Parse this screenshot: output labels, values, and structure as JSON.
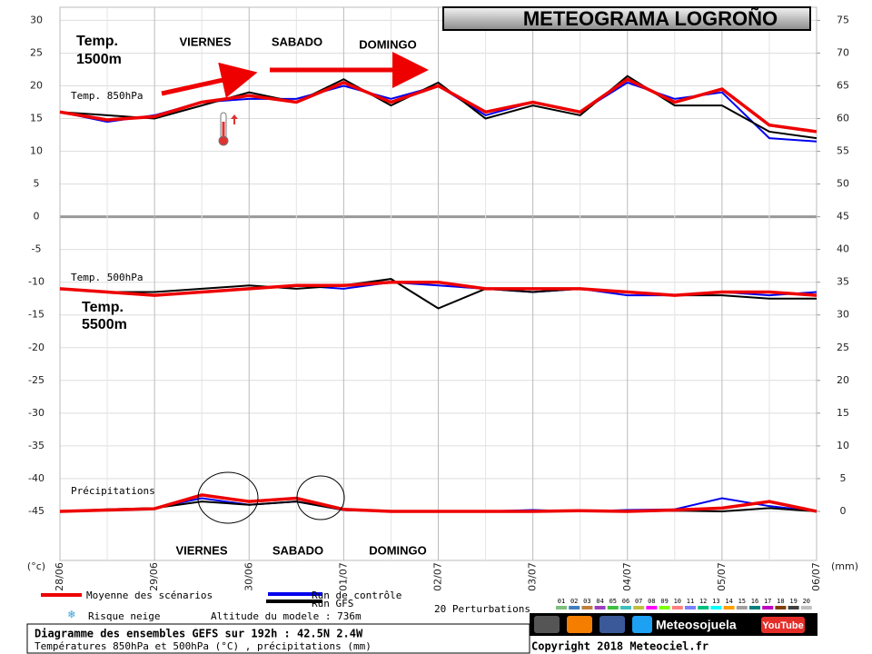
{
  "chart_data": {
    "type": "line",
    "title": "METEOGRAMA LOGROÑO",
    "annotations": {
      "temp_1500": "Temp.",
      "temp_1500_b": "1500m",
      "temp_5500": "Temp.",
      "temp_5500_b": "5500m",
      "days_top": [
        "VIERNES",
        "SABADO",
        "DOMINGO"
      ],
      "days_bottom": [
        "VIERNES",
        "SABADO",
        "DOMINGO"
      ],
      "t850": "Temp. 850hPa",
      "t500": "Temp. 500hPa",
      "precip": "Précipitations"
    },
    "ylabel": "(°c)",
    "y2label": "(mm)",
    "x": [
      0,
      12,
      24,
      36,
      48,
      60,
      72,
      84,
      96,
      108,
      120,
      132,
      144,
      156,
      168,
      180,
      192
    ],
    "xlim": [
      0,
      192
    ],
    "xticks": [
      {
        "value": 0,
        "label": "28/06"
      },
      {
        "value": 24,
        "label": "29/06"
      },
      {
        "value": 48,
        "label": "30/06"
      },
      {
        "value": 72,
        "label": "01/07"
      },
      {
        "value": 96,
        "label": "02/07"
      },
      {
        "value": 120,
        "label": "03/07"
      },
      {
        "value": 144,
        "label": "04/07"
      },
      {
        "value": 168,
        "label": "05/07"
      },
      {
        "value": 192,
        "label": "06/07"
      }
    ],
    "ylim": [
      -52.5,
      32
    ],
    "yticks": [
      30,
      25,
      20,
      15,
      10,
      5,
      0,
      -5,
      -10,
      -15,
      -20,
      -25,
      -30,
      -35,
      -40,
      -45
    ],
    "y2lim": [
      -7.5,
      77
    ],
    "y2ticks": [
      75,
      70,
      65,
      60,
      55,
      50,
      45,
      40,
      35,
      30,
      25,
      20,
      15,
      10,
      5,
      0
    ],
    "grid": true,
    "series": [
      {
        "name": "Run de contrôle",
        "color": "#0000ee",
        "temp850": [
          16,
          14.5,
          15.5,
          17.5,
          18,
          18,
          20,
          18,
          20,
          15.5,
          17.5,
          16,
          20.5,
          18,
          19,
          12,
          11.5
        ],
        "temp500": [
          -11,
          -11.5,
          -12,
          -11.5,
          -11,
          -10.5,
          -11,
          -10,
          -10.5,
          -11,
          -11.5,
          -11,
          -12,
          -12,
          -11.5,
          -12,
          -11.5
        ],
        "precip": [
          0,
          0.2,
          0.5,
          2,
          1,
          1.5,
          0.2,
          0,
          0,
          0,
          0.2,
          0,
          0.2,
          0.3,
          2,
          0.8,
          0
        ]
      },
      {
        "name": "Run GFS",
        "color": "#000000",
        "temp850": [
          16,
          15.5,
          15,
          17,
          19,
          17.5,
          21,
          17,
          20.5,
          15,
          17,
          15.5,
          21.5,
          17,
          17,
          13,
          12
        ],
        "temp500": [
          -11,
          -11.5,
          -11.5,
          -11,
          -10.5,
          -11,
          -10.5,
          -9.5,
          -14,
          -11,
          -11.5,
          -11,
          -11.5,
          -12,
          -12,
          -12.5,
          -12.5
        ],
        "precip": [
          0,
          0.3,
          0.5,
          1.5,
          1,
          1.5,
          0.2,
          0,
          0,
          0,
          0,
          0,
          0,
          0.1,
          0,
          0.5,
          0
        ]
      },
      {
        "name": "Moyenne des scénarios",
        "color": "#ee0000",
        "temp850": [
          16,
          14.8,
          15.3,
          17.5,
          18.5,
          17.5,
          20.5,
          17.5,
          20,
          16,
          17.5,
          16,
          21,
          17.5,
          19.5,
          14,
          13
        ],
        "temp500": [
          -11,
          -11.5,
          -12,
          -11.5,
          -11,
          -10.5,
          -10.5,
          -10,
          -10,
          -11,
          -11,
          -11,
          -11.5,
          -12,
          -11.5,
          -11.5,
          -12
        ],
        "precip": [
          0,
          0.2,
          0.4,
          2.5,
          1.5,
          2,
          0.3,
          0,
          0,
          0,
          0,
          0.1,
          0,
          0.2,
          0.5,
          1.5,
          0
        ]
      }
    ],
    "perturbations": {
      "label": "20 Perturbations",
      "members": [
        {
          "name": "01",
          "color": "#7fbf7f"
        },
        {
          "name": "02",
          "color": "#3f7fbf"
        },
        {
          "name": "03",
          "color": "#bf7f3f"
        },
        {
          "name": "04",
          "color": "#9f3fbf"
        },
        {
          "name": "05",
          "color": "#3fbf3f"
        },
        {
          "name": "06",
          "color": "#3fbfbf"
        },
        {
          "name": "07",
          "color": "#bfbf3f"
        },
        {
          "name": "08",
          "color": "#ff00ff"
        },
        {
          "name": "09",
          "color": "#7fff00"
        },
        {
          "name": "10",
          "color": "#ff7f7f"
        },
        {
          "name": "11",
          "color": "#7f7fff"
        },
        {
          "name": "12",
          "color": "#00bf7f"
        },
        {
          "name": "13",
          "color": "#00ffff"
        },
        {
          "name": "14",
          "color": "#ff9f00"
        },
        {
          "name": "15",
          "color": "#9f9f9f"
        },
        {
          "name": "16",
          "color": "#007f7f"
        },
        {
          "name": "17",
          "color": "#bf00bf"
        },
        {
          "name": "18",
          "color": "#7f3f00"
        },
        {
          "name": "19",
          "color": "#3f3f3f"
        },
        {
          "name": "20",
          "color": "#bfbfbf"
        }
      ]
    },
    "snow_label": "Risque neige",
    "altitude": "Altitude du modele : 736m",
    "footer": {
      "line1": "Diagramme des ensembles GEFS sur 192h : 42.5N 2.4W",
      "line2": "Températures 850hPa et 500hPa (°C) , précipitations (mm)",
      "copyright": "Copyright 2018 Meteociel.fr"
    },
    "social": {
      "brand": "Meteosojuela",
      "youtube": "YouTube"
    }
  }
}
